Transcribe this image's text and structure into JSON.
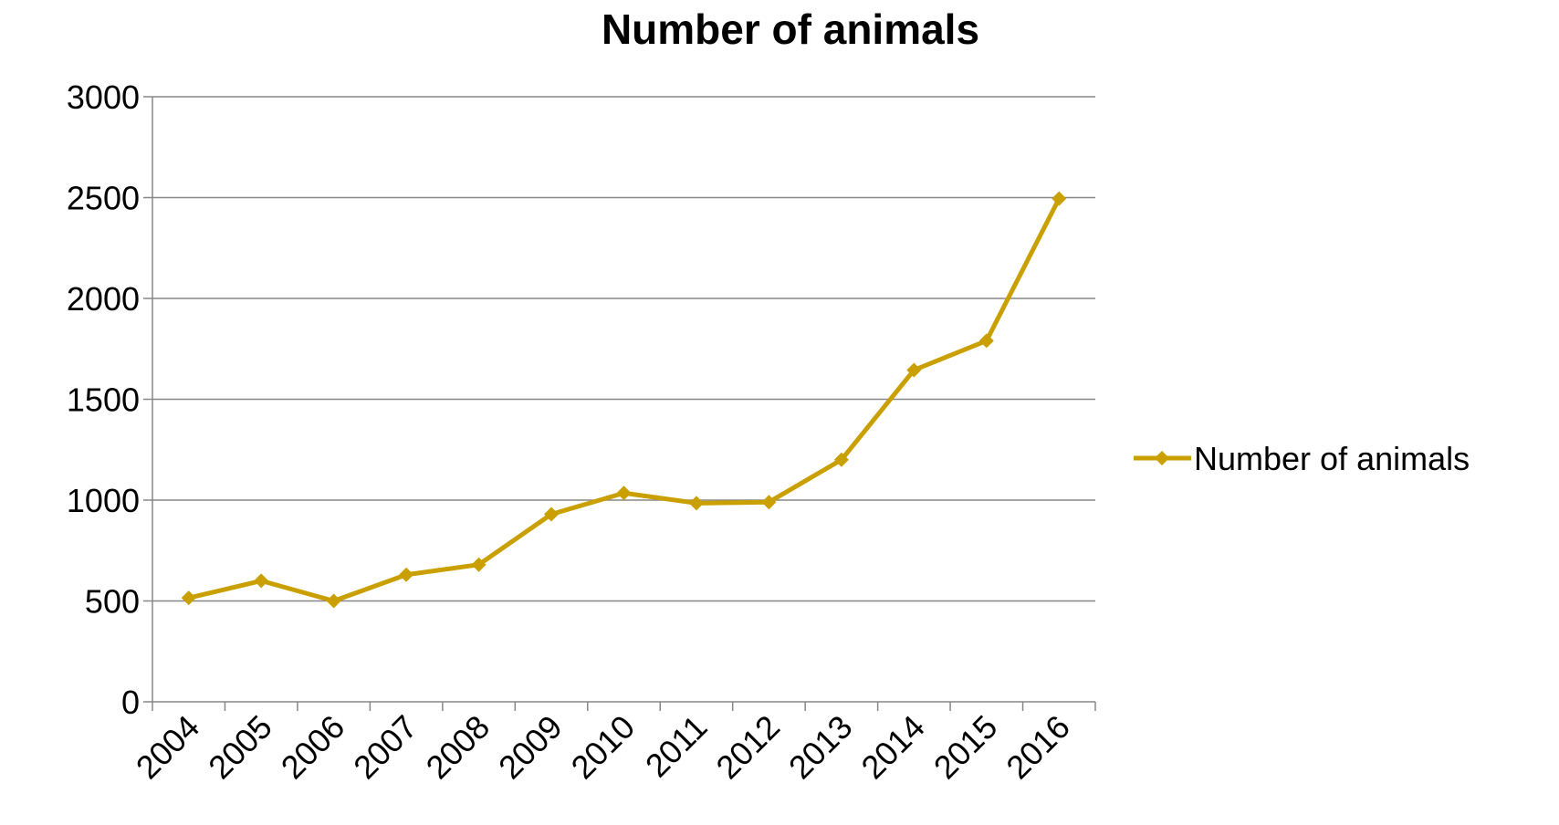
{
  "chart_data": {
    "type": "line",
    "title": "Number of animals",
    "xlabel": "",
    "ylabel": "",
    "categories": [
      "2004",
      "2005",
      "2006",
      "2007",
      "2008",
      "2009",
      "2010",
      "2011",
      "2012",
      "2013",
      "2014",
      "2015",
      "2016"
    ],
    "series": [
      {
        "name": "Number of animals",
        "values": [
          515,
          600,
          500,
          630,
          680,
          930,
          1035,
          985,
          990,
          1200,
          1645,
          1790,
          2495
        ],
        "color": "#C9A000",
        "marker": "diamond"
      }
    ],
    "ylim": [
      0,
      3000
    ],
    "yticks": [
      "0",
      "500",
      "1000",
      "1500",
      "2000",
      "2500",
      "3000"
    ],
    "grid": "horizontal",
    "legend": "right"
  }
}
